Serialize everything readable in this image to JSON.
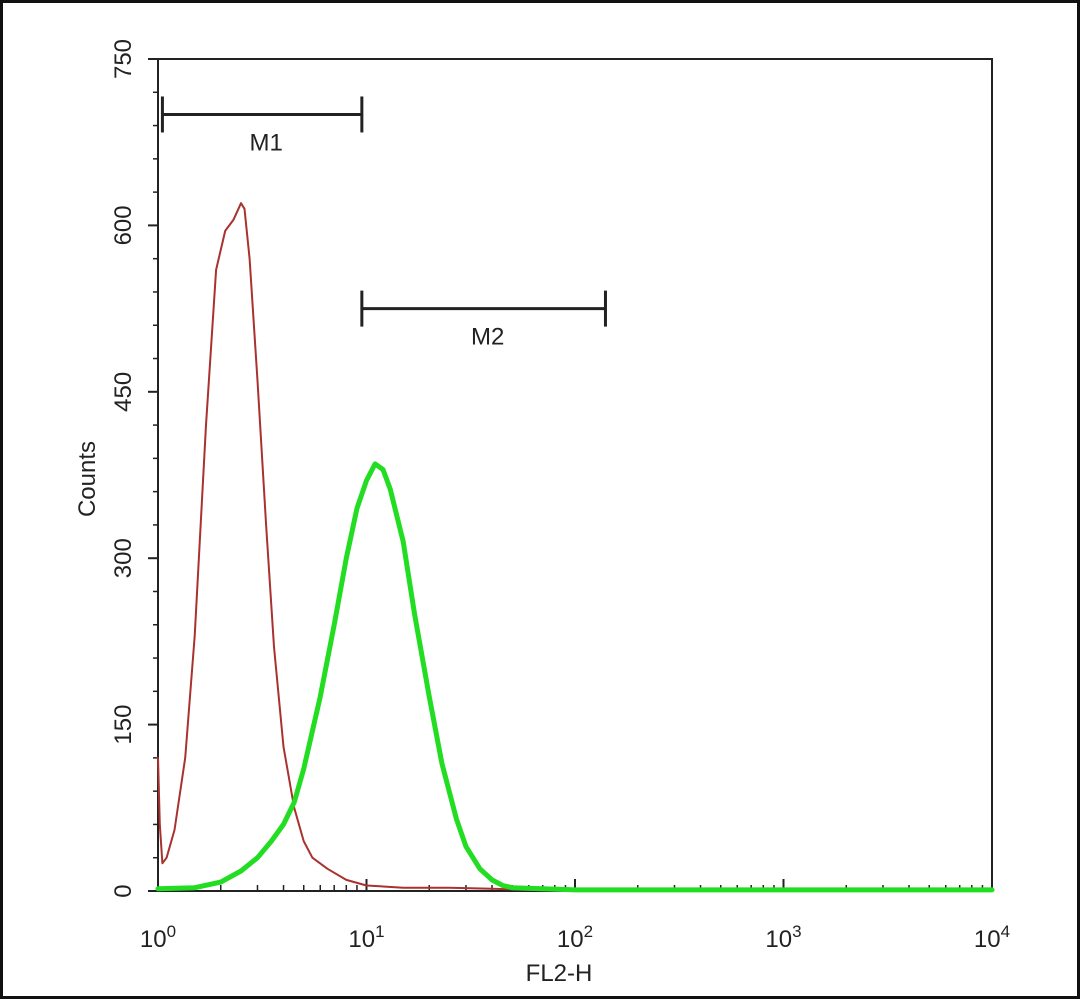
{
  "chart_data": {
    "type": "line",
    "title": "",
    "xlabel": "FL2-H",
    "ylabel": "Counts",
    "x_scale": "log",
    "xlim": [
      1,
      10000
    ],
    "ylim": [
      0,
      750
    ],
    "grid": false,
    "x_ticks": [
      {
        "value": 1,
        "base": "10",
        "exp": "0"
      },
      {
        "value": 10,
        "base": "10",
        "exp": "1"
      },
      {
        "value": 100,
        "base": "10",
        "exp": "2"
      },
      {
        "value": 1000,
        "base": "10",
        "exp": "3"
      },
      {
        "value": 10000,
        "base": "10",
        "exp": "4"
      }
    ],
    "y_ticks": [
      {
        "value": 0,
        "label": "0"
      },
      {
        "value": 150,
        "label": "150"
      },
      {
        "value": 300,
        "label": "300"
      },
      {
        "value": 450,
        "label": "450"
      },
      {
        "value": 600,
        "label": "600"
      },
      {
        "value": 750,
        "label": "750"
      }
    ],
    "markers": [
      {
        "label": "M1",
        "x_start": 1.05,
        "x_end": 9.5,
        "y": 700
      },
      {
        "label": "M2",
        "x_start": 9.5,
        "x_end": 140,
        "y": 525
      }
    ],
    "series": [
      {
        "color": "#a8322f",
        "stroke": "thin",
        "points": [
          [
            1.0,
            120
          ],
          [
            1.02,
            60
          ],
          [
            1.05,
            25
          ],
          [
            1.1,
            30
          ],
          [
            1.2,
            55
          ],
          [
            1.35,
            120
          ],
          [
            1.5,
            230
          ],
          [
            1.7,
            420
          ],
          [
            1.9,
            560
          ],
          [
            2.1,
            595
          ],
          [
            2.3,
            605
          ],
          [
            2.5,
            620
          ],
          [
            2.6,
            615
          ],
          [
            2.75,
            570
          ],
          [
            3.0,
            460
          ],
          [
            3.3,
            330
          ],
          [
            3.6,
            220
          ],
          [
            4.0,
            130
          ],
          [
            4.5,
            75
          ],
          [
            5.0,
            45
          ],
          [
            5.5,
            30
          ],
          [
            6.5,
            20
          ],
          [
            8.0,
            10
          ],
          [
            10,
            5
          ],
          [
            15,
            3
          ],
          [
            25,
            3
          ],
          [
            40,
            2
          ],
          [
            60,
            1
          ],
          [
            100,
            0
          ],
          [
            10000,
            0
          ]
        ]
      },
      {
        "color": "#22dd22",
        "stroke": "thick",
        "points": [
          [
            1.0,
            2
          ],
          [
            1.5,
            3
          ],
          [
            2.0,
            8
          ],
          [
            2.5,
            18
          ],
          [
            3.0,
            30
          ],
          [
            3.5,
            45
          ],
          [
            4.0,
            60
          ],
          [
            4.5,
            80
          ],
          [
            5.0,
            110
          ],
          [
            6.0,
            175
          ],
          [
            7.0,
            240
          ],
          [
            8.0,
            300
          ],
          [
            9.0,
            345
          ],
          [
            10.0,
            370
          ],
          [
            11.0,
            385
          ],
          [
            12.0,
            380
          ],
          [
            13.0,
            362
          ],
          [
            15.0,
            315
          ],
          [
            17.0,
            250
          ],
          [
            20.0,
            175
          ],
          [
            23.0,
            115
          ],
          [
            27.0,
            65
          ],
          [
            30.0,
            40
          ],
          [
            35.0,
            20
          ],
          [
            40.0,
            10
          ],
          [
            45.0,
            5
          ],
          [
            50.0,
            3
          ],
          [
            70.0,
            2
          ],
          [
            100,
            1
          ],
          [
            200,
            1
          ],
          [
            1000,
            1
          ],
          [
            10000,
            1
          ]
        ]
      }
    ]
  }
}
